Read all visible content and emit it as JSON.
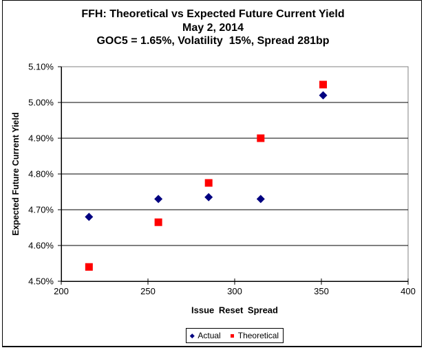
{
  "title": {
    "line1": "FFH: Theoretical vs Expected Future Current Yield",
    "line2": "May 2, 2014",
    "line3": "GOC5 = 1.65%, Volatility  15%, Spread 281bp"
  },
  "legend": {
    "actual": "Actual",
    "theoretical": "Theoretical"
  },
  "colors": {
    "actual": "#000080",
    "theoretical": "#FF0000",
    "plot_border": "#808080",
    "axis": "#000000",
    "background": "#FFFFFF"
  },
  "chart_data": {
    "type": "scatter",
    "title": "FFH: Theoretical vs Expected Future Current Yield",
    "subtitle": "May 2, 2014",
    "subtitle2": "GOC5 = 1.65%, Volatility 15%, Spread 281bp",
    "xlabel": "Issue Reset Spread",
    "ylabel": "Expected Future Current Yield",
    "xlim": [
      200,
      400
    ],
    "ylim": [
      4.5,
      5.1
    ],
    "x_ticks": [
      200,
      250,
      300,
      350,
      400
    ],
    "y_ticks": [
      4.5,
      4.6,
      4.7,
      4.8,
      4.9,
      5.0,
      5.1
    ],
    "y_tick_format": "percent2",
    "grid": "horizontal",
    "legend_position": "bottom",
    "series": [
      {
        "name": "Actual",
        "marker": "diamond",
        "color": "#000080",
        "points": [
          [
            216,
            4.68
          ],
          [
            256,
            4.73
          ],
          [
            285,
            4.735
          ],
          [
            315,
            4.73
          ],
          [
            351,
            5.02
          ]
        ]
      },
      {
        "name": "Theoretical",
        "marker": "square",
        "color": "#FF0000",
        "points": [
          [
            216,
            4.54
          ],
          [
            256,
            4.665
          ],
          [
            285,
            4.775
          ],
          [
            315,
            4.9
          ],
          [
            351,
            5.05
          ]
        ]
      }
    ]
  }
}
